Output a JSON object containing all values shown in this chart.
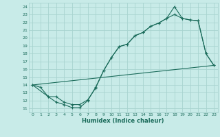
{
  "xlabel": "Humidex (Indice chaleur)",
  "ylabel": "",
  "xlim": [
    -0.5,
    23.5
  ],
  "ylim": [
    10.5,
    24.5
  ],
  "yticks": [
    11,
    12,
    13,
    14,
    15,
    16,
    17,
    18,
    19,
    20,
    21,
    22,
    23,
    24
  ],
  "xticks": [
    0,
    1,
    2,
    3,
    4,
    5,
    6,
    7,
    8,
    9,
    10,
    11,
    12,
    13,
    14,
    15,
    16,
    17,
    18,
    19,
    20,
    21,
    22,
    23
  ],
  "bg_color": "#c8ebe8",
  "grid_color": "#a8d4d0",
  "line_color": "#1a6b5a",
  "line1_x": [
    0,
    1,
    2,
    3,
    4,
    5,
    6,
    7,
    8,
    9,
    10,
    11,
    12,
    13,
    14,
    15,
    16,
    17,
    18,
    19,
    20,
    21,
    22,
    23
  ],
  "line1_y": [
    14.0,
    13.7,
    12.5,
    11.8,
    11.5,
    11.1,
    11.1,
    12.0,
    13.7,
    15.8,
    17.5,
    18.9,
    19.2,
    20.3,
    20.7,
    21.5,
    21.9,
    22.5,
    24.0,
    22.5,
    22.3,
    22.2,
    18.0,
    16.5
  ],
  "line2_x": [
    0,
    2,
    3,
    4,
    5,
    6,
    7,
    8,
    9,
    10,
    11,
    12,
    13,
    14,
    15,
    16,
    17,
    18,
    19,
    20,
    21,
    22,
    23
  ],
  "line2_y": [
    14.0,
    12.5,
    12.5,
    11.8,
    11.5,
    11.5,
    12.1,
    13.6,
    15.8,
    17.5,
    18.9,
    19.2,
    20.3,
    20.7,
    21.5,
    21.9,
    22.5,
    23.0,
    22.5,
    22.3,
    22.2,
    18.0,
    16.5
  ],
  "line3_x": [
    0,
    23
  ],
  "line3_y": [
    14.0,
    16.5
  ]
}
